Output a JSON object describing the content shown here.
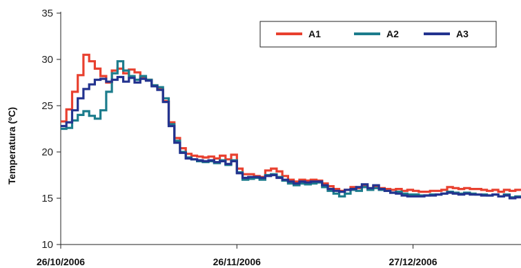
{
  "chart_data": {
    "type": "line",
    "title": "",
    "xlabel": "",
    "ylabel": "Temperatura (ºC)",
    "ylim": [
      10,
      35
    ],
    "yticks": [
      10,
      15,
      20,
      25,
      30,
      35
    ],
    "xlim": [
      "2006-10-26",
      "2007-01-15"
    ],
    "xticks": [
      {
        "date": "2006-10-26",
        "label": "26/10/2006"
      },
      {
        "date": "2006-11-26",
        "label": "26/11/2006"
      },
      {
        "date": "2006-12-27",
        "label": "27/12/2006"
      }
    ],
    "grid": false,
    "legend_position": "top-right",
    "step": true,
    "series": [
      {
        "name": "A1",
        "color": "#e8402f",
        "points": [
          [
            "2006-10-26",
            23.3
          ],
          [
            "2006-10-27",
            24.6
          ],
          [
            "2006-10-28",
            26.5
          ],
          [
            "2006-10-29",
            28.3
          ],
          [
            "2006-10-30",
            30.5
          ],
          [
            "2006-10-31",
            29.8
          ],
          [
            "2006-11-01",
            29.0
          ],
          [
            "2006-11-02",
            28.2
          ],
          [
            "2006-11-03",
            27.5
          ],
          [
            "2006-11-04",
            28.8
          ],
          [
            "2006-11-05",
            29.0
          ],
          [
            "2006-11-06",
            28.5
          ],
          [
            "2006-11-07",
            28.9
          ],
          [
            "2006-11-08",
            28.6
          ],
          [
            "2006-11-09",
            28.0
          ],
          [
            "2006-11-10",
            27.8
          ],
          [
            "2006-11-11",
            27.2
          ],
          [
            "2006-11-12",
            26.8
          ],
          [
            "2006-11-13",
            25.5
          ],
          [
            "2006-11-14",
            23.2
          ],
          [
            "2006-11-15",
            21.5
          ],
          [
            "2006-11-16",
            20.4
          ],
          [
            "2006-11-17",
            19.8
          ],
          [
            "2006-11-18",
            19.6
          ],
          [
            "2006-11-19",
            19.5
          ],
          [
            "2006-11-20",
            19.4
          ],
          [
            "2006-11-21",
            19.5
          ],
          [
            "2006-11-22",
            19.3
          ],
          [
            "2006-11-23",
            19.6
          ],
          [
            "2006-11-24",
            19.2
          ],
          [
            "2006-11-25",
            19.7
          ],
          [
            "2006-11-26",
            18.2
          ],
          [
            "2006-11-27",
            17.6
          ],
          [
            "2006-11-28",
            17.6
          ],
          [
            "2006-11-29",
            17.4
          ],
          [
            "2006-11-30",
            17.3
          ],
          [
            "2006-12-01",
            18.0
          ],
          [
            "2006-12-02",
            18.2
          ],
          [
            "2006-12-03",
            17.9
          ],
          [
            "2006-12-04",
            17.4
          ],
          [
            "2006-12-05",
            17.0
          ],
          [
            "2006-12-06",
            16.8
          ],
          [
            "2006-12-07",
            17.0
          ],
          [
            "2006-12-08",
            16.9
          ],
          [
            "2006-12-09",
            17.0
          ],
          [
            "2006-12-10",
            16.9
          ],
          [
            "2006-12-11",
            16.6
          ],
          [
            "2006-12-12",
            16.3
          ],
          [
            "2006-12-13",
            16.0
          ],
          [
            "2006-12-14",
            15.8
          ],
          [
            "2006-12-15",
            15.9
          ],
          [
            "2006-12-16",
            16.2
          ],
          [
            "2006-12-17",
            16.1
          ],
          [
            "2006-12-18",
            16.3
          ],
          [
            "2006-12-19",
            16.0
          ],
          [
            "2006-12-20",
            16.3
          ],
          [
            "2006-12-21",
            16.1
          ],
          [
            "2006-12-22",
            16.0
          ],
          [
            "2006-12-23",
            15.9
          ],
          [
            "2006-12-24",
            16.0
          ],
          [
            "2006-12-25",
            15.8
          ],
          [
            "2006-12-26",
            15.9
          ],
          [
            "2006-12-27",
            15.8
          ],
          [
            "2006-12-28",
            15.7
          ],
          [
            "2006-12-29",
            15.7
          ],
          [
            "2006-12-30",
            15.8
          ],
          [
            "2006-12-31",
            15.8
          ],
          [
            "2007-01-01",
            15.9
          ],
          [
            "2007-01-02",
            16.2
          ],
          [
            "2007-01-03",
            16.1
          ],
          [
            "2007-01-04",
            16.0
          ],
          [
            "2007-01-05",
            16.1
          ],
          [
            "2007-01-06",
            16.0
          ],
          [
            "2007-01-07",
            16.0
          ],
          [
            "2007-01-08",
            15.9
          ],
          [
            "2007-01-09",
            15.8
          ],
          [
            "2007-01-10",
            15.9
          ],
          [
            "2007-01-11",
            15.7
          ],
          [
            "2007-01-12",
            15.9
          ],
          [
            "2007-01-13",
            15.8
          ],
          [
            "2007-01-14",
            15.9
          ],
          [
            "2007-01-15",
            15.9
          ]
        ]
      },
      {
        "name": "A2",
        "color": "#1c7c8c",
        "points": [
          [
            "2006-10-26",
            22.5
          ],
          [
            "2006-10-27",
            22.6
          ],
          [
            "2006-10-28",
            23.4
          ],
          [
            "2006-10-29",
            24.0
          ],
          [
            "2006-10-30",
            24.4
          ],
          [
            "2006-10-31",
            23.9
          ],
          [
            "2006-11-01",
            23.6
          ],
          [
            "2006-11-02",
            24.5
          ],
          [
            "2006-11-03",
            26.5
          ],
          [
            "2006-11-04",
            28.5
          ],
          [
            "2006-11-05",
            29.8
          ],
          [
            "2006-11-06",
            28.8
          ],
          [
            "2006-11-07",
            28.2
          ],
          [
            "2006-11-08",
            27.8
          ],
          [
            "2006-11-09",
            28.2
          ],
          [
            "2006-11-10",
            27.8
          ],
          [
            "2006-11-11",
            27.2
          ],
          [
            "2006-11-12",
            27.0
          ],
          [
            "2006-11-13",
            25.8
          ],
          [
            "2006-11-14",
            23.0
          ],
          [
            "2006-11-15",
            21.2
          ],
          [
            "2006-11-16",
            20.0
          ],
          [
            "2006-11-17",
            19.4
          ],
          [
            "2006-11-18",
            19.2
          ],
          [
            "2006-11-19",
            19.0
          ],
          [
            "2006-11-20",
            18.9
          ],
          [
            "2006-11-21",
            19.0
          ],
          [
            "2006-11-22",
            18.8
          ],
          [
            "2006-11-23",
            19.1
          ],
          [
            "2006-11-24",
            18.6
          ],
          [
            "2006-11-25",
            19.1
          ],
          [
            "2006-11-26",
            17.8
          ],
          [
            "2006-11-27",
            17.0
          ],
          [
            "2006-11-28",
            17.1
          ],
          [
            "2006-11-29",
            17.2
          ],
          [
            "2006-11-30",
            17.0
          ],
          [
            "2006-12-01",
            17.5
          ],
          [
            "2006-12-02",
            17.6
          ],
          [
            "2006-12-03",
            17.3
          ],
          [
            "2006-12-04",
            16.9
          ],
          [
            "2006-12-05",
            16.6
          ],
          [
            "2006-12-06",
            16.4
          ],
          [
            "2006-12-07",
            16.6
          ],
          [
            "2006-12-08",
            16.5
          ],
          [
            "2006-12-09",
            16.6
          ],
          [
            "2006-12-10",
            16.7
          ],
          [
            "2006-12-11",
            16.2
          ],
          [
            "2006-12-12",
            15.8
          ],
          [
            "2006-12-13",
            15.5
          ],
          [
            "2006-12-14",
            15.2
          ],
          [
            "2006-12-15",
            15.5
          ],
          [
            "2006-12-16",
            15.9
          ],
          [
            "2006-12-17",
            15.8
          ],
          [
            "2006-12-18",
            16.2
          ],
          [
            "2006-12-19",
            15.9
          ],
          [
            "2006-12-20",
            16.1
          ],
          [
            "2006-12-21",
            15.9
          ],
          [
            "2006-12-22",
            15.8
          ],
          [
            "2006-12-23",
            15.6
          ],
          [
            "2006-12-24",
            15.7
          ],
          [
            "2006-12-25",
            15.5
          ],
          [
            "2006-12-26",
            15.4
          ],
          [
            "2006-12-27",
            15.4
          ],
          [
            "2006-12-28",
            15.3
          ],
          [
            "2006-12-29",
            15.3
          ],
          [
            "2006-12-30",
            15.4
          ],
          [
            "2006-12-31",
            15.4
          ],
          [
            "2007-01-01",
            15.5
          ],
          [
            "2007-01-02",
            15.7
          ],
          [
            "2007-01-03",
            15.6
          ],
          [
            "2007-01-04",
            15.5
          ],
          [
            "2007-01-05",
            15.6
          ],
          [
            "2007-01-06",
            15.5
          ],
          [
            "2007-01-07",
            15.4
          ],
          [
            "2007-01-08",
            15.4
          ],
          [
            "2007-01-09",
            15.3
          ],
          [
            "2007-01-10",
            15.4
          ],
          [
            "2007-01-11",
            15.2
          ],
          [
            "2007-01-12",
            15.4
          ],
          [
            "2007-01-13",
            15.1
          ],
          [
            "2007-01-14",
            15.2
          ],
          [
            "2007-01-15",
            15.2
          ]
        ]
      },
      {
        "name": "A3",
        "color": "#23338f",
        "points": [
          [
            "2006-10-26",
            22.8
          ],
          [
            "2006-10-27",
            23.2
          ],
          [
            "2006-10-28",
            24.5
          ],
          [
            "2006-10-29",
            25.8
          ],
          [
            "2006-10-30",
            26.8
          ],
          [
            "2006-10-31",
            27.3
          ],
          [
            "2006-11-01",
            27.8
          ],
          [
            "2006-11-02",
            27.9
          ],
          [
            "2006-11-03",
            27.6
          ],
          [
            "2006-11-04",
            27.8
          ],
          [
            "2006-11-05",
            28.1
          ],
          [
            "2006-11-06",
            27.6
          ],
          [
            "2006-11-07",
            28.0
          ],
          [
            "2006-11-08",
            27.5
          ],
          [
            "2006-11-09",
            27.9
          ],
          [
            "2006-11-10",
            27.7
          ],
          [
            "2006-11-11",
            27.1
          ],
          [
            "2006-11-12",
            26.7
          ],
          [
            "2006-11-13",
            25.4
          ],
          [
            "2006-11-14",
            22.8
          ],
          [
            "2006-11-15",
            21.0
          ],
          [
            "2006-11-16",
            19.9
          ],
          [
            "2006-11-17",
            19.3
          ],
          [
            "2006-11-18",
            19.2
          ],
          [
            "2006-11-19",
            19.1
          ],
          [
            "2006-11-20",
            19.0
          ],
          [
            "2006-11-21",
            19.1
          ],
          [
            "2006-11-22",
            18.9
          ],
          [
            "2006-11-23",
            19.0
          ],
          [
            "2006-11-24",
            18.7
          ],
          [
            "2006-11-25",
            19.0
          ],
          [
            "2006-11-26",
            17.7
          ],
          [
            "2006-11-27",
            17.2
          ],
          [
            "2006-11-28",
            17.3
          ],
          [
            "2006-11-29",
            17.3
          ],
          [
            "2006-11-30",
            17.2
          ],
          [
            "2006-12-01",
            17.4
          ],
          [
            "2006-12-02",
            17.5
          ],
          [
            "2006-12-03",
            17.2
          ],
          [
            "2006-12-04",
            17.0
          ],
          [
            "2006-12-05",
            16.8
          ],
          [
            "2006-12-06",
            16.6
          ],
          [
            "2006-12-07",
            16.8
          ],
          [
            "2006-12-08",
            16.7
          ],
          [
            "2006-12-09",
            16.8
          ],
          [
            "2006-12-10",
            16.8
          ],
          [
            "2006-12-11",
            16.4
          ],
          [
            "2006-12-12",
            16.0
          ],
          [
            "2006-12-13",
            15.8
          ],
          [
            "2006-12-14",
            15.7
          ],
          [
            "2006-12-15",
            15.9
          ],
          [
            "2006-12-16",
            16.0
          ],
          [
            "2006-12-17",
            16.2
          ],
          [
            "2006-12-18",
            16.5
          ],
          [
            "2006-12-19",
            16.1
          ],
          [
            "2006-12-20",
            16.4
          ],
          [
            "2006-12-21",
            16.0
          ],
          [
            "2006-12-22",
            15.8
          ],
          [
            "2006-12-23",
            15.6
          ],
          [
            "2006-12-24",
            15.5
          ],
          [
            "2006-12-25",
            15.3
          ],
          [
            "2006-12-26",
            15.2
          ],
          [
            "2006-12-27",
            15.2
          ],
          [
            "2006-12-28",
            15.2
          ],
          [
            "2006-12-29",
            15.3
          ],
          [
            "2006-12-30",
            15.3
          ],
          [
            "2006-12-31",
            15.4
          ],
          [
            "2007-01-01",
            15.5
          ],
          [
            "2007-01-02",
            15.6
          ],
          [
            "2007-01-03",
            15.5
          ],
          [
            "2007-01-04",
            15.4
          ],
          [
            "2007-01-05",
            15.5
          ],
          [
            "2007-01-06",
            15.4
          ],
          [
            "2007-01-07",
            15.4
          ],
          [
            "2007-01-08",
            15.3
          ],
          [
            "2007-01-09",
            15.3
          ],
          [
            "2007-01-10",
            15.4
          ],
          [
            "2007-01-11",
            15.2
          ],
          [
            "2007-01-12",
            15.3
          ],
          [
            "2007-01-13",
            15.0
          ],
          [
            "2007-01-14",
            15.1
          ],
          [
            "2007-01-15",
            15.0
          ]
        ]
      }
    ]
  }
}
